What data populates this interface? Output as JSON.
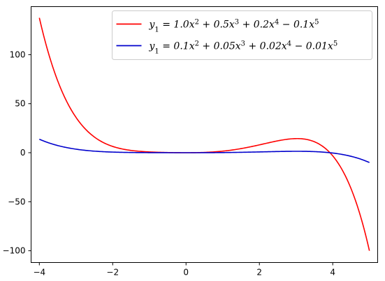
{
  "chart_data": {
    "type": "line",
    "title": "",
    "xlabel": "",
    "ylabel": "",
    "xlim": [
      -4.225,
      5.225
    ],
    "ylim": [
      -112.0,
      149.0
    ],
    "x_range": [
      -4,
      5
    ],
    "x_ticks": [
      -4,
      -2,
      0,
      2,
      4
    ],
    "y_ticks": [
      -100,
      -50,
      0,
      50,
      100
    ],
    "x_tick_labels": [
      "−4",
      "−2",
      "0",
      "2",
      "4"
    ],
    "y_tick_labels": [
      "−100",
      "−50",
      "0",
      "50",
      "100"
    ],
    "grid": false,
    "legend_position": "upper right",
    "series": [
      {
        "name": "y1 = 1.0x^2 + 0.5x^3 + 0.2x^4 - 0.1x^5",
        "color": "#ff0000",
        "coefficients": [
          0,
          0,
          1.0,
          0.5,
          0.2,
          -0.1
        ],
        "label_parts": [
          {
            "t": "y",
            "s": ""
          },
          {
            "t": "1",
            "s": "sub"
          },
          {
            "t": " = 1.0x",
            "s": ""
          },
          {
            "t": "2",
            "s": "sup"
          },
          {
            "t": " + 0.5x",
            "s": ""
          },
          {
            "t": "3",
            "s": "sup"
          },
          {
            "t": " + 0.2x",
            "s": ""
          },
          {
            "t": "4",
            "s": "sup"
          },
          {
            "t": " − 0.1x",
            "s": ""
          },
          {
            "t": "5",
            "s": "sup"
          }
        ]
      },
      {
        "name": "y1 = 0.1x^2 + 0.05x^3 + 0.02x^4 - 0.01x^5",
        "color": "#0000cc",
        "coefficients": [
          0,
          0,
          0.1,
          0.05,
          0.02,
          -0.01
        ],
        "label_parts": [
          {
            "t": "y",
            "s": ""
          },
          {
            "t": "1",
            "s": "sub"
          },
          {
            "t": " = 0.1x",
            "s": ""
          },
          {
            "t": "2",
            "s": "sup"
          },
          {
            "t": " + 0.05x",
            "s": ""
          },
          {
            "t": "3",
            "s": "sup"
          },
          {
            "t": " + 0.02x",
            "s": ""
          },
          {
            "t": "4",
            "s": "sup"
          },
          {
            "t": " − 0.01x",
            "s": ""
          },
          {
            "t": "5",
            "s": "sup"
          }
        ]
      }
    ]
  }
}
